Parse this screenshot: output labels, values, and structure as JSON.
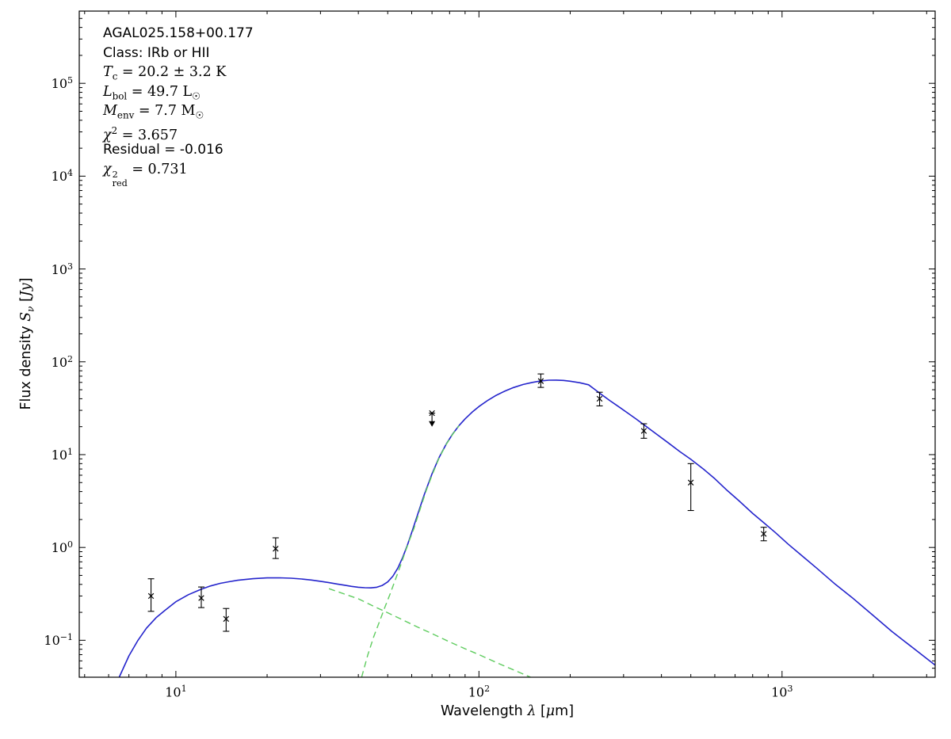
{
  "figure": {
    "background": "#ffffff",
    "annotation": {
      "lines": [
        {
          "font": "sans",
          "name": "source-name",
          "runs": [
            {
              "t": "AGAL025.158+00.177"
            }
          ]
        },
        {
          "font": "sans",
          "name": "class-line",
          "runs": [
            {
              "t": "Class: IRb or HII"
            }
          ]
        },
        {
          "font": "serif",
          "name": "temperature-line",
          "runs": [
            {
              "t": "T",
              "it": true
            },
            {
              "t": "c",
              "sub": true
            },
            {
              "t": " = 20.2 ± 3.2 K"
            }
          ]
        },
        {
          "font": "serif",
          "name": "luminosity-line",
          "runs": [
            {
              "t": "L",
              "it": true
            },
            {
              "t": "bol",
              "sub": true
            },
            {
              "t": " = 49.7 L"
            },
            {
              "t": "☉",
              "sub": true
            }
          ]
        },
        {
          "font": "serif",
          "name": "mass-line",
          "runs": [
            {
              "t": "M",
              "it": true
            },
            {
              "t": "env",
              "sub": true
            },
            {
              "t": " = 7.7 M"
            },
            {
              "t": "☉",
              "sub": true
            }
          ]
        },
        {
          "font": "serif",
          "name": "chi2-line",
          "runs": [
            {
              "t": "χ",
              "it": true
            },
            {
              "t": "2",
              "sup": true
            },
            {
              "t": " = 3.657"
            }
          ]
        },
        {
          "font": "sans",
          "name": "residual-line",
          "runs": [
            {
              "t": "Residual = -0.016"
            }
          ]
        },
        {
          "font": "serif",
          "name": "chi2red-line",
          "runs": [
            {
              "t": "χ",
              "it": true
            },
            {
              "stack": {
                "sup": "2",
                "sub": "red"
              }
            },
            {
              "t": " = 0.731"
            }
          ]
        }
      ]
    },
    "x_axis": {
      "label_runs": [
        {
          "t": "Wavelength "
        },
        {
          "t": "λ",
          "it": true
        },
        {
          "t": " ["
        },
        {
          "t": "μ",
          "it": true
        },
        {
          "t": "m]"
        }
      ]
    },
    "y_axis": {
      "label_runs": [
        {
          "t": "Flux density "
        },
        {
          "t": "S",
          "it": true
        },
        {
          "t": "ν",
          "sub": true,
          "it": true
        },
        {
          "t": " ["
        },
        {
          "t": "Jy",
          "it": true
        },
        {
          "t": "]"
        }
      ]
    }
  },
  "chart_data": {
    "type": "line",
    "object": "AGAL025.158+00.177",
    "xlabel": "Wavelength λ [μm]",
    "ylabel": "Flux density Sν [Jy]",
    "xscale": "log",
    "yscale": "log",
    "xlim": [
      4.8,
      3200
    ],
    "ylim": [
      0.04,
      600000
    ],
    "grid": false,
    "x_major_ticks": [
      10,
      100,
      1000
    ],
    "y_major_tick_exponents": [
      -1,
      0,
      1,
      2,
      3,
      4,
      5
    ],
    "fit_parameters": {
      "object": "AGAL025.158+00.177",
      "class": "IRb or HII",
      "Tc_K": "20.2 ± 3.2",
      "Lbol_Lsun": 49.7,
      "Menv_Msun": 7.7,
      "chi2": 3.657,
      "residual": -0.016,
      "chi2_red": 0.731
    },
    "series": [
      {
        "name": "model-total",
        "color": "#2424cc",
        "line_style": "solid",
        "width": 1.6,
        "points": [
          [
            6.5,
            0.04
          ],
          [
            7,
            0.068
          ],
          [
            7.5,
            0.1
          ],
          [
            8,
            0.135
          ],
          [
            8.6,
            0.175
          ],
          [
            9.2,
            0.21
          ],
          [
            10,
            0.26
          ],
          [
            11,
            0.31
          ],
          [
            12,
            0.35
          ],
          [
            13,
            0.385
          ],
          [
            14,
            0.41
          ],
          [
            15,
            0.428
          ],
          [
            16,
            0.443
          ],
          [
            18,
            0.461
          ],
          [
            20,
            0.47
          ],
          [
            22,
            0.471
          ],
          [
            24,
            0.466
          ],
          [
            26,
            0.457
          ],
          [
            28,
            0.446
          ],
          [
            30,
            0.432
          ],
          [
            32,
            0.418
          ],
          [
            34,
            0.404
          ],
          [
            36,
            0.392
          ],
          [
            38,
            0.381
          ],
          [
            40,
            0.373
          ],
          [
            42,
            0.368
          ],
          [
            44,
            0.367
          ],
          [
            46,
            0.373
          ],
          [
            48,
            0.39
          ],
          [
            50,
            0.425
          ],
          [
            52,
            0.49
          ],
          [
            54,
            0.6
          ],
          [
            56,
            0.78
          ],
          [
            58,
            1.05
          ],
          [
            60,
            1.45
          ],
          [
            63,
            2.35
          ],
          [
            66,
            3.7
          ],
          [
            70,
            6.2
          ],
          [
            74,
            9.4
          ],
          [
            78,
            13
          ],
          [
            82,
            16.8
          ],
          [
            86,
            20.6
          ],
          [
            90,
            24.3
          ],
          [
            95,
            28.7
          ],
          [
            100,
            33
          ],
          [
            107,
            38.5
          ],
          [
            114,
            43.5
          ],
          [
            122,
            48.5
          ],
          [
            130,
            52.8
          ],
          [
            140,
            57
          ],
          [
            150,
            60
          ],
          [
            160,
            62.2
          ],
          [
            170,
            63.4
          ],
          [
            180,
            63.5
          ],
          [
            190,
            63
          ],
          [
            200,
            61.8
          ],
          [
            215,
            59.5
          ],
          [
            230,
            56.5
          ],
          [
            240,
            51
          ],
          [
            250,
            46
          ],
          [
            270,
            38.3
          ],
          [
            290,
            32.6
          ],
          [
            310,
            28
          ],
          [
            330,
            24.2
          ],
          [
            350,
            21
          ],
          [
            380,
            17.2
          ],
          [
            420,
            13.5
          ],
          [
            460,
            10.8
          ],
          [
            500,
            8.9
          ],
          [
            550,
            7.0
          ],
          [
            600,
            5.5
          ],
          [
            660,
            4.1
          ],
          [
            720,
            3.2
          ],
          [
            800,
            2.33
          ],
          [
            870,
            1.85
          ],
          [
            950,
            1.45
          ],
          [
            1050,
            1.08
          ],
          [
            1150,
            0.84
          ],
          [
            1300,
            0.6
          ],
          [
            1500,
            0.4
          ],
          [
            1700,
            0.29
          ],
          [
            2000,
            0.185
          ],
          [
            2300,
            0.125
          ],
          [
            2700,
            0.083
          ],
          [
            3200,
            0.054
          ]
        ]
      },
      {
        "name": "model-cold-component",
        "color": "#5fcc5f",
        "line_style": "dashed",
        "width": 1.4,
        "points": [
          [
            41,
            0.04
          ],
          [
            43,
            0.07
          ],
          [
            45,
            0.11
          ],
          [
            47,
            0.16
          ],
          [
            49,
            0.23
          ],
          [
            51,
            0.32
          ],
          [
            53,
            0.45
          ],
          [
            55,
            0.63
          ],
          [
            57,
            0.88
          ],
          [
            59,
            1.2
          ],
          [
            61,
            1.6
          ],
          [
            64,
            2.6
          ],
          [
            67,
            4.1
          ],
          [
            70,
            6.0
          ],
          [
            74,
            9.3
          ],
          [
            78,
            12.9
          ],
          [
            82,
            16.7
          ],
          [
            86,
            20.5
          ]
        ]
      },
      {
        "name": "model-warm-component",
        "color": "#5fcc5f",
        "line_style": "dashed",
        "width": 1.4,
        "points": [
          [
            32,
            0.36
          ],
          [
            36,
            0.315
          ],
          [
            40,
            0.28
          ],
          [
            45,
            0.232
          ],
          [
            50,
            0.198
          ],
          [
            56,
            0.166
          ],
          [
            63,
            0.138
          ],
          [
            70,
            0.118
          ],
          [
            80,
            0.096
          ],
          [
            90,
            0.081
          ],
          [
            100,
            0.07
          ],
          [
            115,
            0.057
          ],
          [
            130,
            0.048
          ],
          [
            148,
            0.04
          ]
        ]
      }
    ],
    "observations": {
      "marker": "x",
      "color": "#000000",
      "points": [
        {
          "x": 8.28,
          "y": 0.3,
          "y_lo": 0.205,
          "y_hi": 0.46
        },
        {
          "x": 12.13,
          "y": 0.285,
          "y_lo": 0.225,
          "y_hi": 0.375
        },
        {
          "x": 14.65,
          "y": 0.17,
          "y_lo": 0.125,
          "y_hi": 0.22
        },
        {
          "x": 21.34,
          "y": 0.97,
          "y_lo": 0.76,
          "y_hi": 1.27
        },
        {
          "x": 160,
          "y": 62,
          "y_lo": 53,
          "y_hi": 74
        },
        {
          "x": 250,
          "y": 40,
          "y_lo": 33.5,
          "y_hi": 47
        },
        {
          "x": 350,
          "y": 18,
          "y_lo": 15,
          "y_hi": 21.5
        },
        {
          "x": 500,
          "y": 5.0,
          "y_lo": 2.5,
          "y_hi": 8.0
        },
        {
          "x": 870,
          "y": 1.4,
          "y_lo": 1.18,
          "y_hi": 1.65
        }
      ]
    },
    "upper_limits": [
      {
        "x": 70,
        "y": 28,
        "arrow_to": 20
      }
    ]
  },
  "layout_colors": {
    "frame": "#000000",
    "text": "#000000"
  }
}
